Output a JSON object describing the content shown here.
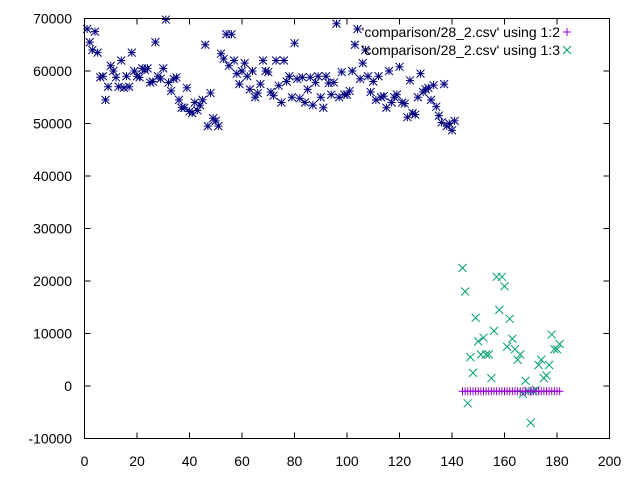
{
  "chart_data": {
    "type": "scatter",
    "title": "",
    "xlabel": "",
    "ylabel": "",
    "xlim": [
      0,
      200
    ],
    "ylim": [
      -10000,
      70000
    ],
    "xticks": [
      0,
      20,
      40,
      60,
      80,
      100,
      120,
      140,
      160,
      180,
      200
    ],
    "yticks": [
      -10000,
      0,
      10000,
      20000,
      30000,
      40000,
      50000,
      60000,
      70000
    ],
    "xtick_labels": [
      "0",
      "20",
      "40",
      "60",
      "80",
      "100",
      "120",
      "140",
      "160",
      "180",
      "200"
    ],
    "ytick_labels": [
      "-10000",
      "0",
      "10000",
      "20000",
      "30000",
      "40000",
      "50000",
      "60000",
      "70000"
    ],
    "grid": false,
    "legend_position": "top-right",
    "series": [
      {
        "name": "'comparison/28_2.csv' using 1:2",
        "marker": "plus",
        "color": "#9400d3",
        "points": [
          [
            144,
            -1000
          ],
          [
            145,
            -1000
          ],
          [
            146,
            -1000
          ],
          [
            147,
            -1000
          ],
          [
            148,
            -1000
          ],
          [
            149,
            -1000
          ],
          [
            150,
            -1000
          ],
          [
            151,
            -1000
          ],
          [
            152,
            -1000
          ],
          [
            153,
            -1000
          ],
          [
            154,
            -1000
          ],
          [
            155,
            -1000
          ],
          [
            156,
            -1000
          ],
          [
            157,
            -1000
          ],
          [
            158,
            -1000
          ],
          [
            159,
            -1000
          ],
          [
            160,
            -1000
          ],
          [
            161,
            -1000
          ],
          [
            162,
            -1000
          ],
          [
            163,
            -1000
          ],
          [
            164,
            -1000
          ],
          [
            165,
            -1000
          ],
          [
            166,
            -1000
          ],
          [
            167,
            -1000
          ],
          [
            168,
            -1000
          ],
          [
            169,
            -1000
          ],
          [
            170,
            -1000
          ],
          [
            171,
            -1000
          ],
          [
            172,
            -1000
          ],
          [
            173,
            -1000
          ],
          [
            174,
            -1000
          ],
          [
            175,
            -1000
          ],
          [
            176,
            -1000
          ],
          [
            177,
            -1000
          ],
          [
            178,
            -1000
          ],
          [
            179,
            -1000
          ],
          [
            180,
            -1000
          ],
          [
            181,
            -1000
          ]
        ]
      },
      {
        "name": "'comparison/28_2.csv' using 1:3",
        "marker": "cross",
        "color": "#009e73",
        "points": [
          [
            144,
            22500
          ],
          [
            145,
            18000
          ],
          [
            146,
            -3300
          ],
          [
            147,
            5500
          ],
          [
            148,
            2500
          ],
          [
            149,
            13000
          ],
          [
            150,
            8500
          ],
          [
            151,
            6000
          ],
          [
            152,
            9200
          ],
          [
            153,
            6000
          ],
          [
            154,
            6000
          ],
          [
            155,
            1500
          ],
          [
            156,
            10500
          ],
          [
            157,
            20800
          ],
          [
            158,
            14500
          ],
          [
            159,
            20800
          ],
          [
            160,
            19000
          ],
          [
            161,
            7500
          ],
          [
            162,
            12800
          ],
          [
            163,
            9000
          ],
          [
            164,
            7000
          ],
          [
            165,
            5000
          ],
          [
            166,
            6000
          ],
          [
            167,
            -1500
          ],
          [
            168,
            1000
          ],
          [
            169,
            -1000
          ],
          [
            170,
            -7000
          ],
          [
            171,
            -1000
          ],
          [
            172,
            -700
          ],
          [
            173,
            4000
          ],
          [
            174,
            5000
          ],
          [
            175,
            1500
          ],
          [
            176,
            2000
          ],
          [
            177,
            4000
          ],
          [
            178,
            9800
          ],
          [
            179,
            7000
          ],
          [
            180,
            7000
          ],
          [
            181,
            8000
          ]
        ]
      },
      {
        "name": "",
        "marker": "star",
        "color": "#000080",
        "points": [
          [
            1,
            68000
          ],
          [
            2,
            65500
          ],
          [
            3,
            64000
          ],
          [
            4,
            67500
          ],
          [
            5,
            63500
          ],
          [
            6,
            58800
          ],
          [
            7,
            59000
          ],
          [
            8,
            54500
          ],
          [
            9,
            57000
          ],
          [
            10,
            61000
          ],
          [
            11,
            60000
          ],
          [
            12,
            58800
          ],
          [
            13,
            57000
          ],
          [
            14,
            62000
          ],
          [
            15,
            56800
          ],
          [
            16,
            59000
          ],
          [
            17,
            57000
          ],
          [
            18,
            63500
          ],
          [
            19,
            60000
          ],
          [
            20,
            59000
          ],
          [
            21,
            58800
          ],
          [
            22,
            60500
          ],
          [
            23,
            60200
          ],
          [
            24,
            60500
          ],
          [
            25,
            57800
          ],
          [
            26,
            58000
          ],
          [
            27,
            65500
          ],
          [
            28,
            59000
          ],
          [
            29,
            58500
          ],
          [
            30,
            60500
          ],
          [
            31,
            69800
          ],
          [
            32,
            57800
          ],
          [
            33,
            56200
          ],
          [
            34,
            58500
          ],
          [
            35,
            58800
          ],
          [
            36,
            54500
          ],
          [
            37,
            53000
          ],
          [
            38,
            53000
          ],
          [
            39,
            56800
          ],
          [
            40,
            52300
          ],
          [
            41,
            52000
          ],
          [
            42,
            54000
          ],
          [
            43,
            52500
          ],
          [
            44,
            53500
          ],
          [
            45,
            54500
          ],
          [
            46,
            65000
          ],
          [
            47,
            49500
          ],
          [
            48,
            55800
          ],
          [
            49,
            51000
          ],
          [
            50,
            50500
          ],
          [
            51,
            49500
          ],
          [
            52,
            63300
          ],
          [
            53,
            62300
          ],
          [
            54,
            67000
          ],
          [
            55,
            61000
          ],
          [
            56,
            67000
          ],
          [
            57,
            62000
          ],
          [
            58,
            59500
          ],
          [
            59,
            57500
          ],
          [
            60,
            60000
          ],
          [
            61,
            61500
          ],
          [
            62,
            59000
          ],
          [
            63,
            56500
          ],
          [
            64,
            60000
          ],
          [
            65,
            55000
          ],
          [
            66,
            55800
          ],
          [
            67,
            57500
          ],
          [
            68,
            62000
          ],
          [
            69,
            60000
          ],
          [
            70,
            59800
          ],
          [
            71,
            56000
          ],
          [
            72,
            55300
          ],
          [
            73,
            62000
          ],
          [
            74,
            57200
          ],
          [
            75,
            54000
          ],
          [
            76,
            62000
          ],
          [
            77,
            58000
          ],
          [
            78,
            59000
          ],
          [
            79,
            55000
          ],
          [
            80,
            65300
          ],
          [
            81,
            58500
          ],
          [
            82,
            54800
          ],
          [
            83,
            58800
          ],
          [
            84,
            54000
          ],
          [
            85,
            56500
          ],
          [
            86,
            58800
          ],
          [
            87,
            53500
          ],
          [
            88,
            57800
          ],
          [
            89,
            59000
          ],
          [
            90,
            55000
          ],
          [
            91,
            53000
          ],
          [
            92,
            59000
          ],
          [
            93,
            57700
          ],
          [
            94,
            55500
          ],
          [
            95,
            57800
          ],
          [
            96,
            69000
          ],
          [
            97,
            55000
          ],
          [
            98,
            59800
          ],
          [
            99,
            55500
          ],
          [
            100,
            55500
          ],
          [
            101,
            56200
          ],
          [
            102,
            60000
          ],
          [
            103,
            65000
          ],
          [
            104,
            68000
          ],
          [
            105,
            58500
          ],
          [
            106,
            61500
          ],
          [
            107,
            64000
          ],
          [
            108,
            59000
          ],
          [
            109,
            56000
          ],
          [
            110,
            58000
          ],
          [
            111,
            54500
          ],
          [
            112,
            59000
          ],
          [
            113,
            55000
          ],
          [
            114,
            55200
          ],
          [
            115,
            53000
          ],
          [
            116,
            60000
          ],
          [
            117,
            54000
          ],
          [
            118,
            55000
          ],
          [
            119,
            55500
          ],
          [
            120,
            60800
          ],
          [
            121,
            54000
          ],
          [
            122,
            53800
          ],
          [
            123,
            51200
          ],
          [
            124,
            58200
          ],
          [
            125,
            52000
          ],
          [
            126,
            51700
          ],
          [
            127,
            55000
          ],
          [
            128,
            59500
          ],
          [
            129,
            56000
          ],
          [
            130,
            56500
          ],
          [
            131,
            56800
          ],
          [
            132,
            54500
          ],
          [
            133,
            57300
          ],
          [
            134,
            53200
          ],
          [
            135,
            51500
          ],
          [
            136,
            50200
          ],
          [
            137,
            57500
          ],
          [
            138,
            49500
          ],
          [
            139,
            50000
          ],
          [
            140,
            48700
          ],
          [
            141,
            50500
          ]
        ]
      }
    ]
  }
}
